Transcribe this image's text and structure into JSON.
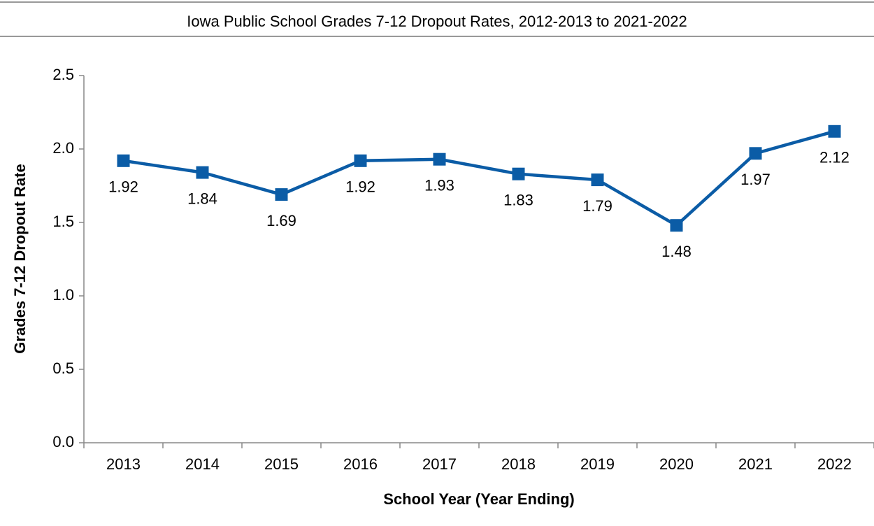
{
  "chart_data": {
    "type": "line",
    "title": "Iowa Public School Grades 7-12 Dropout Rates, 2012-2013 to 2021-2022",
    "x_label": "School Year (Year Ending)",
    "y_label": "Grades 7-12 Dropout Rate",
    "categories": [
      "2013",
      "2014",
      "2015",
      "2016",
      "2017",
      "2018",
      "2019",
      "2020",
      "2021",
      "2022"
    ],
    "series": [
      {
        "name": "Dropout Rate",
        "color": "#0b5ca6",
        "values": [
          1.92,
          1.84,
          1.69,
          1.92,
          1.93,
          1.83,
          1.79,
          1.48,
          1.97,
          2.12
        ]
      }
    ],
    "ylim": [
      0,
      2.5
    ],
    "yticks": [
      {
        "value": 0,
        "label": "0.0"
      },
      0.5,
      {
        "value": 1,
        "label": "1.0"
      },
      1.5,
      {
        "value": 2,
        "label": "2.0"
      },
      2.5
    ],
    "grid": false,
    "legend": false
  }
}
